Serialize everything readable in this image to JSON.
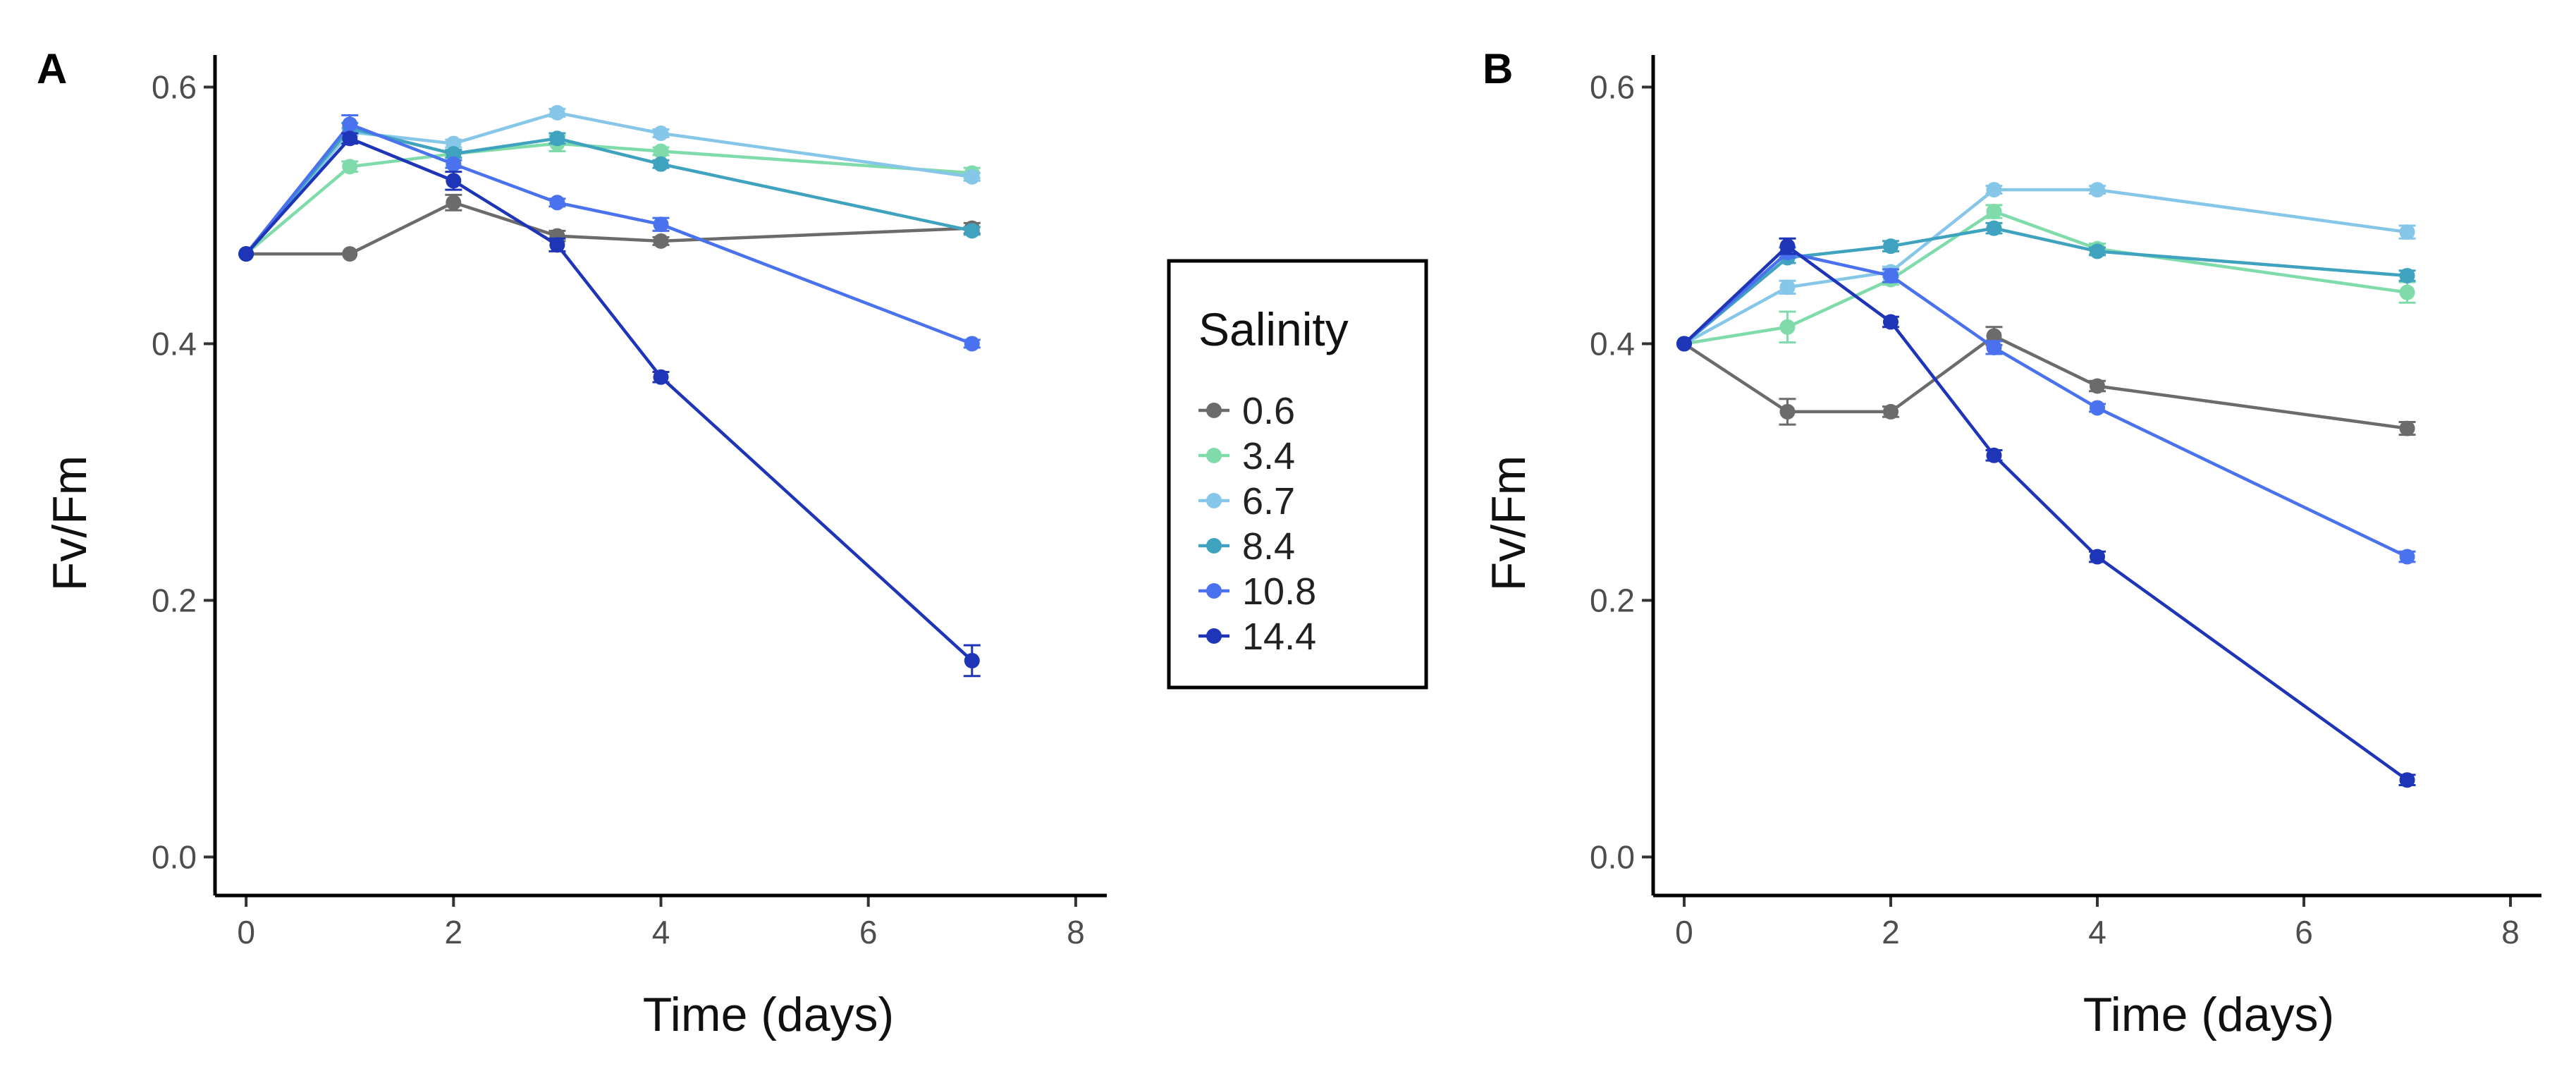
{
  "chart_data": [
    {
      "type": "line",
      "panel": "A",
      "x": [
        0,
        1,
        2,
        3,
        4,
        7
      ],
      "xlim": [
        -0.3,
        8.3
      ],
      "ylim": [
        -0.03,
        0.625
      ],
      "xticks": [
        0,
        2,
        4,
        6,
        8
      ],
      "yticks": [
        0.0,
        0.2,
        0.4,
        0.6
      ],
      "xtick_labels": [
        "0",
        "2",
        "4",
        "6",
        "8"
      ],
      "ytick_labels": [
        "0.0",
        "0.2",
        "0.4",
        "0.6"
      ],
      "xlabel": "Time (days)",
      "ylabel": "Fv/Fm",
      "series": [
        {
          "name": "0.6",
          "values": [
            0.47,
            0.47,
            0.51,
            0.484,
            0.48,
            0.49
          ],
          "errors": [
            0,
            0,
            0.006,
            0.004,
            0.003,
            0.004
          ]
        },
        {
          "name": "3.4",
          "values": [
            0.47,
            0.538,
            0.548,
            0.556,
            0.55,
            0.533
          ],
          "errors": [
            0,
            0.004,
            0.003,
            0.006,
            0.003,
            0.004
          ]
        },
        {
          "name": "6.7",
          "values": [
            0.47,
            0.565,
            0.556,
            0.58,
            0.564,
            0.53
          ],
          "errors": [
            0,
            0.003,
            0.003,
            0.003,
            0.003,
            0.003
          ]
        },
        {
          "name": "8.4",
          "values": [
            0.47,
            0.568,
            0.548,
            0.56,
            0.54,
            0.488
          ],
          "errors": [
            0,
            0.004,
            0.003,
            0.004,
            0.003,
            0.003
          ]
        },
        {
          "name": "10.8",
          "values": [
            0.47,
            0.571,
            0.54,
            0.51,
            0.493,
            0.4
          ],
          "errors": [
            0,
            0.007,
            0.003,
            0.003,
            0.005,
            0.003
          ]
        },
        {
          "name": "14.4",
          "values": [
            0.47,
            0.56,
            0.527,
            0.477,
            0.374,
            0.153
          ],
          "errors": [
            0,
            0.004,
            0.007,
            0.005,
            0.004,
            0.012
          ]
        }
      ]
    },
    {
      "type": "line",
      "panel": "B",
      "x": [
        0,
        1,
        2,
        3,
        4,
        7
      ],
      "xlim": [
        -0.3,
        8.3
      ],
      "ylim": [
        -0.03,
        0.625
      ],
      "xticks": [
        0,
        2,
        4,
        6,
        8
      ],
      "yticks": [
        0.0,
        0.2,
        0.4,
        0.6
      ],
      "xtick_labels": [
        "0",
        "2",
        "4",
        "6",
        "8"
      ],
      "ytick_labels": [
        "0.0",
        "0.2",
        "0.4",
        "0.6"
      ],
      "xlabel": "Time (days)",
      "ylabel": "Fv/Fm",
      "series": [
        {
          "name": "0.6",
          "values": [
            0.4,
            0.347,
            0.347,
            0.406,
            0.367,
            0.334
          ],
          "errors": [
            0,
            0.01,
            0.004,
            0.007,
            0.004,
            0.005
          ]
        },
        {
          "name": "3.4",
          "values": [
            0.4,
            0.413,
            0.45,
            0.503,
            0.474,
            0.44
          ],
          "errors": [
            0,
            0.012,
            0.004,
            0.005,
            0.004,
            0.008
          ]
        },
        {
          "name": "6.7",
          "values": [
            0.4,
            0.444,
            0.456,
            0.52,
            0.52,
            0.487
          ],
          "errors": [
            0,
            0.005,
            0.004,
            0.003,
            0.003,
            0.005
          ]
        },
        {
          "name": "8.4",
          "values": [
            0.4,
            0.467,
            0.476,
            0.49,
            0.472,
            0.453
          ],
          "errors": [
            0,
            0.004,
            0.004,
            0.004,
            0.003,
            0.004
          ]
        },
        {
          "name": "10.8",
          "values": [
            0.4,
            0.471,
            0.453,
            0.397,
            0.35,
            0.234
          ],
          "errors": [
            0,
            0.004,
            0.005,
            0.005,
            0.003,
            0.004
          ]
        },
        {
          "name": "14.4",
          "values": [
            0.4,
            0.476,
            0.417,
            0.313,
            0.234,
            0.06
          ],
          "errors": [
            0,
            0.006,
            0.004,
            0.004,
            0.004,
            0.004
          ]
        }
      ]
    }
  ],
  "panel_labels": {
    "a": "A",
    "b": "B"
  },
  "legend": {
    "title": "Salinity",
    "items": [
      {
        "label": "0.6",
        "color": "#6b6b6b"
      },
      {
        "label": "3.4",
        "color": "#7fdcaa"
      },
      {
        "label": "6.7",
        "color": "#86c6e8"
      },
      {
        "label": "8.4",
        "color": "#3fa3bf"
      },
      {
        "label": "10.8",
        "color": "#4a72ee"
      },
      {
        "label": "14.4",
        "color": "#1f35b8"
      }
    ]
  }
}
